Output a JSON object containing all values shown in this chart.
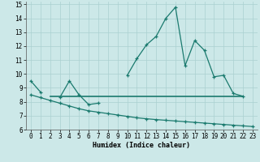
{
  "x": [
    0,
    1,
    2,
    3,
    4,
    5,
    6,
    7,
    8,
    9,
    10,
    11,
    12,
    13,
    14,
    15,
    16,
    17,
    18,
    19,
    20,
    21,
    22,
    23
  ],
  "line1": [
    9.5,
    8.7,
    null,
    8.3,
    9.5,
    8.5,
    7.8,
    7.9,
    null,
    null,
    9.9,
    11.1,
    12.1,
    12.7,
    14.0,
    14.8,
    10.6,
    12.4,
    11.7,
    9.8,
    9.9,
    8.6,
    8.4,
    null
  ],
  "line2_x": [
    2,
    22
  ],
  "line2_y": [
    8.4,
    8.4
  ],
  "line3": [
    8.5,
    8.3,
    8.1,
    7.9,
    7.7,
    7.5,
    7.35,
    7.25,
    7.15,
    7.05,
    6.95,
    6.85,
    6.78,
    6.72,
    6.67,
    6.62,
    6.57,
    6.52,
    6.47,
    6.42,
    6.37,
    6.32,
    6.27,
    6.22
  ],
  "color": "#1a7a6e",
  "bg_color": "#cce8e8",
  "grid_color": "#aad0d0",
  "xlim": [
    -0.5,
    23.5
  ],
  "ylim": [
    6,
    15.2
  ],
  "xlabel": "Humidex (Indice chaleur)",
  "xticks": [
    0,
    1,
    2,
    3,
    4,
    5,
    6,
    7,
    8,
    9,
    10,
    11,
    12,
    13,
    14,
    15,
    16,
    17,
    18,
    19,
    20,
    21,
    22,
    23
  ],
  "yticks": [
    6,
    7,
    8,
    9,
    10,
    11,
    12,
    13,
    14,
    15
  ],
  "axis_fontsize": 6.0,
  "tick_fontsize": 5.5
}
